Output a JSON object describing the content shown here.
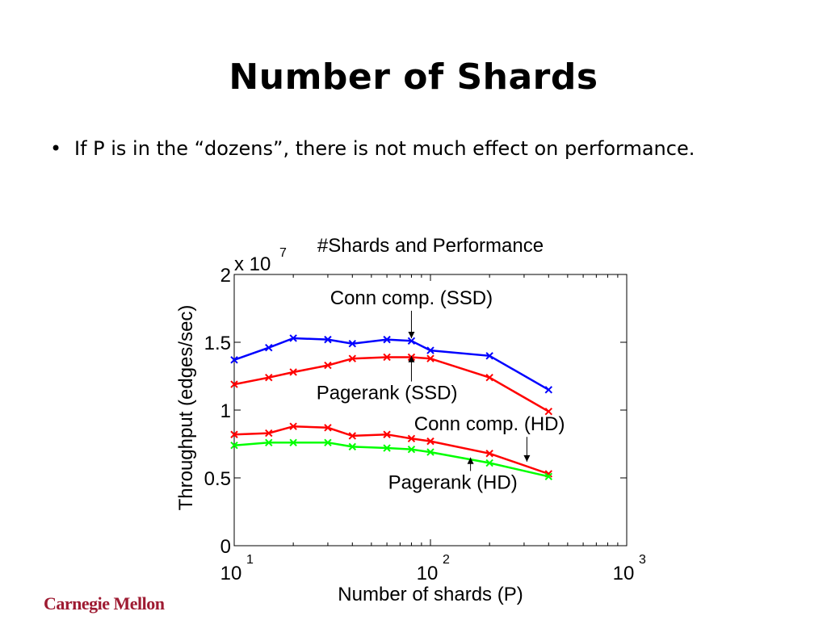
{
  "slide": {
    "title": "Number of Shards",
    "bullet_marker": "•",
    "bullet_text": "If P is in the “dozens”, there is not much effect on performance.",
    "logo_text": "Carnegie Mellon"
  },
  "chart_data": {
    "type": "line",
    "title": "#Shards and Performance",
    "xlabel": "Number of shards (P)",
    "ylabel": "Throughput (edges/sec)",
    "x_scale": "log",
    "xlim": [
      10,
      1000
    ],
    "ylim": [
      0,
      20000000
    ],
    "x_ticks": [
      {
        "value": 10,
        "base": "10",
        "exp": "1"
      },
      {
        "value": 100,
        "base": "10",
        "exp": "2"
      },
      {
        "value": 1000,
        "base": "10",
        "exp": "3"
      }
    ],
    "y_ticks": [
      {
        "value": 0,
        "label": "0"
      },
      {
        "value": 5000000,
        "label": "0.5"
      },
      {
        "value": 10000000,
        "label": "1"
      },
      {
        "value": 15000000,
        "label": "1.5"
      },
      {
        "value": 20000000,
        "label": "2"
      }
    ],
    "y_multiplier": {
      "base": "x 10",
      "exp": "7"
    },
    "grid": false,
    "series": [
      {
        "name": "Conn comp. (SSD)",
        "color": "#0000ff",
        "marker": "x",
        "x": [
          10,
          15,
          20,
          30,
          40,
          60,
          80,
          100,
          200,
          400
        ],
        "y": [
          13700000,
          14600000,
          15300000,
          15200000,
          14900000,
          15200000,
          15100000,
          14400000,
          14000000,
          11500000
        ]
      },
      {
        "name": "Pagerank (SSD)",
        "color": "#ff0000",
        "marker": "x",
        "x": [
          10,
          15,
          20,
          30,
          40,
          60,
          80,
          100,
          200,
          400
        ],
        "y": [
          11900000,
          12400000,
          12800000,
          13300000,
          13800000,
          13900000,
          13900000,
          13800000,
          12400000,
          9900000
        ]
      },
      {
        "name": "Conn comp. (HD)",
        "color": "#ff0000",
        "marker": "x",
        "x": [
          10,
          15,
          20,
          30,
          40,
          60,
          80,
          100,
          200,
          400
        ],
        "y": [
          8200000,
          8300000,
          8800000,
          8700000,
          8100000,
          8200000,
          7900000,
          7700000,
          6800000,
          5300000
        ]
      },
      {
        "name": "Pagerank (HD)",
        "color": "#00ff00",
        "marker": "x",
        "x": [
          10,
          15,
          20,
          30,
          40,
          60,
          80,
          100,
          200,
          400
        ],
        "y": [
          7400000,
          7600000,
          7600000,
          7600000,
          7300000,
          7200000,
          7100000,
          6900000,
          6100000,
          5100000
        ]
      }
    ],
    "annotations": [
      {
        "text": "Conn comp. (SSD)",
        "tx": 80,
        "ty": 17800000,
        "ax": 80,
        "ay": 15300000
      },
      {
        "text": "Pagerank (SSD)",
        "tx": 60,
        "ty": 10800000,
        "ax": 80,
        "ay": 14000000
      },
      {
        "text": "Conn comp. (HD)",
        "tx": 200,
        "ty": 8500000,
        "ax": 310,
        "ay": 6200000
      },
      {
        "text": "Pagerank (HD)",
        "tx": 130,
        "ty": 4200000,
        "ax": 160,
        "ay": 6500000
      }
    ]
  }
}
